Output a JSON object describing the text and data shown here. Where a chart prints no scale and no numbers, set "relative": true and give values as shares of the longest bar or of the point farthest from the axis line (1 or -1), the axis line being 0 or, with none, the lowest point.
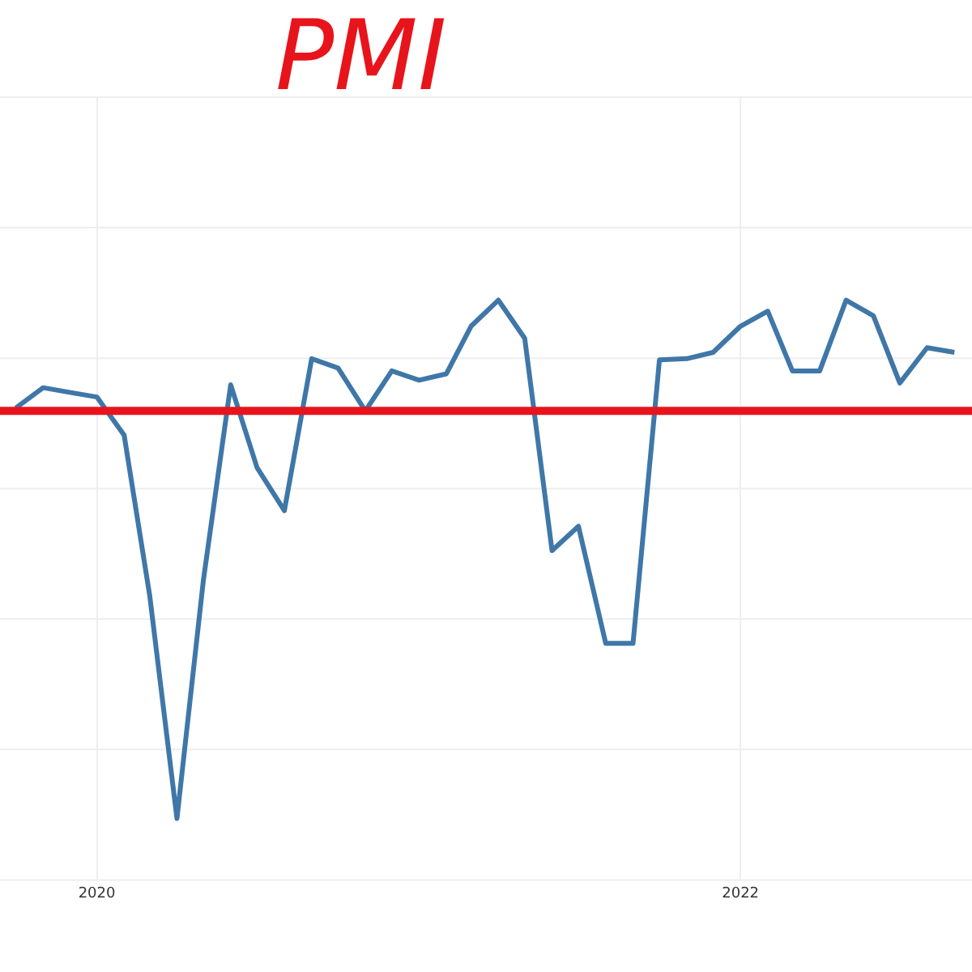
{
  "chart_data": {
    "type": "line",
    "title": "PMI",
    "relative": true,
    "grid": true,
    "legend": false,
    "marker": "none",
    "line_style": "solid",
    "x": [
      "2019-10",
      "2019-11",
      "2019-12",
      "2020-01",
      "2020-02",
      "2020-03",
      "2020-04",
      "2020-05",
      "2020-06",
      "2020-07",
      "2020-08",
      "2020-09",
      "2020-10",
      "2020-11",
      "2020-12",
      "2021-01",
      "2021-02",
      "2021-03",
      "2021-04",
      "2021-05",
      "2021-06",
      "2021-07",
      "2021-08",
      "2021-09",
      "2021-10",
      "2021-11",
      "2021-12",
      "2022-01",
      "2022-02",
      "2022-03",
      "2022-04",
      "2022-05",
      "2022-06",
      "2022-07",
      "2022-08",
      "2022-09"
    ],
    "xlim": [
      "2019-09-13",
      "2022-09-21"
    ],
    "xticks": [
      {
        "value": "2020-01",
        "label": "2020"
      },
      {
        "value": "2022-01",
        "label": "2022"
      }
    ],
    "series": [
      {
        "color": "#3f77a8",
        "values": [
          0.814,
          0.849,
          0.841,
          0.833,
          0.767,
          0.491,
          0.106,
          0.517,
          0.854,
          0.711,
          0.637,
          0.899,
          0.883,
          0.809,
          0.878,
          0.862,
          0.873,
          0.955,
          1,
          0.934,
          0.568,
          0.61,
          0.408,
          0.408,
          0.897,
          0.899,
          0.91,
          0.955,
          0.981,
          0.878,
          0.878,
          1,
          0.973,
          0.857,
          0.918,
          0.91
        ]
      }
    ],
    "ref_lines": [
      {
        "axis": "y",
        "value": 0.809,
        "color": "#e8141c"
      }
    ]
  }
}
